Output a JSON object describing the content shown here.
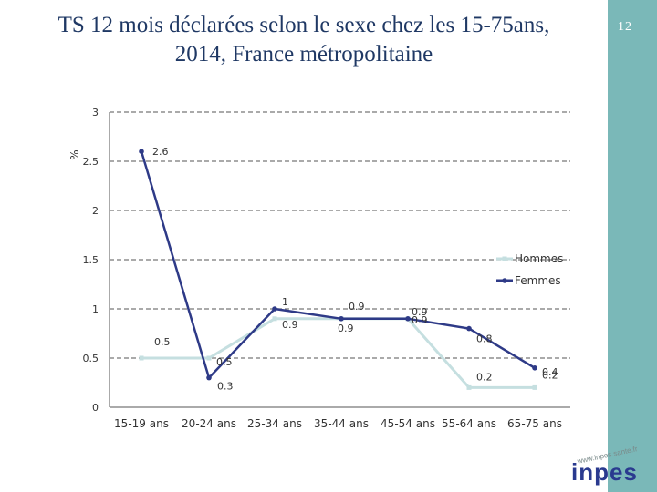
{
  "page": {
    "title_line1": "TS 12 mois déclarées selon le sexe chez les 15-75ans,",
    "title_line2": "2014, France métropolitaine",
    "slide_number": "12",
    "logo_url": "www.inpes.sante.fr",
    "logo_word": "inpes"
  },
  "chart_data": {
    "type": "line",
    "title": "TS 12 mois déclarées selon le sexe chez les 15-75ans, 2014, France métropolitaine",
    "ylabel": "%",
    "xlabel": "",
    "ylim": [
      0,
      3
    ],
    "yticks": [
      "0",
      "0.5",
      "1",
      "1.5",
      "2",
      "2.5",
      "3"
    ],
    "grid": true,
    "legend_position": "right",
    "categories": [
      "15-19 ans",
      "20-24 ans",
      "25-34 ans",
      "35-44 ans",
      "45-54 ans",
      "55-64 ans",
      "65-75 ans"
    ],
    "series": [
      {
        "name": "Hommes",
        "values": [
          0.5,
          0.5,
          0.9,
          0.9,
          0.9,
          0.2,
          0.2
        ],
        "labels": [
          "0.5",
          "0.5",
          "0.9",
          "0.9",
          "0.9",
          "0.2",
          "0.2"
        ],
        "color": "#c5dfe0"
      },
      {
        "name": "Femmes",
        "values": [
          2.6,
          0.3,
          1.0,
          0.9,
          0.9,
          0.8,
          0.4
        ],
        "labels": [
          "2.6",
          "0.3",
          "1",
          "0.9",
          "0.9",
          "0.8",
          "0.4"
        ],
        "color": "#2e3a87"
      }
    ]
  },
  "colors": {
    "sidebar": "#7ab8b8",
    "title": "#1f3864",
    "grid": "#777777",
    "text": "#333333"
  }
}
